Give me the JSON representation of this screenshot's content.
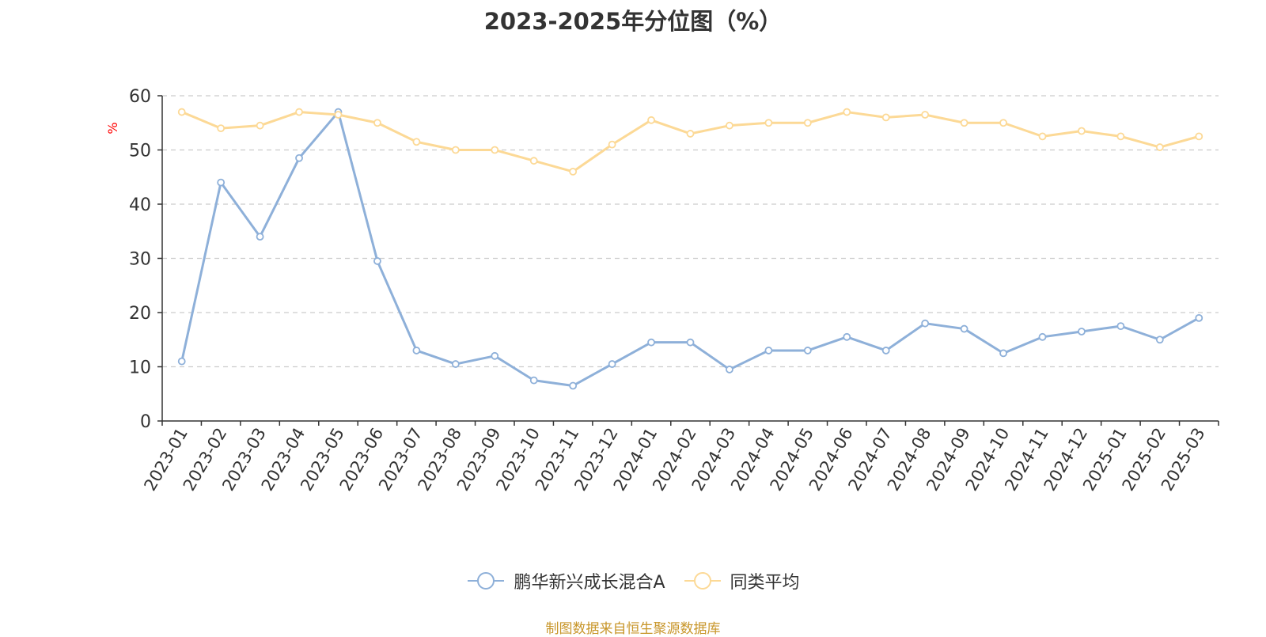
{
  "colors": {
    "series_a": "#8eb0d9",
    "series_b": "#fcd996",
    "grid": "#cccccc",
    "axis": "#333333",
    "unit": "#ff0000",
    "source": "#c8962a"
  },
  "source_note": "制图数据来自恒生聚源数据库",
  "chart_data": {
    "type": "line",
    "title": "2023-2025年分位图（%）",
    "ylabel": "%",
    "xlabel": "",
    "ylim": [
      0,
      60
    ],
    "yticks": [
      0,
      10,
      20,
      30,
      40,
      50,
      60
    ],
    "grid": true,
    "legend_position": "bottom",
    "categories": [
      "2023-01",
      "2023-02",
      "2023-03",
      "2023-04",
      "2023-05",
      "2023-06",
      "2023-07",
      "2023-08",
      "2023-09",
      "2023-10",
      "2023-11",
      "2023-12",
      "2024-01",
      "2024-02",
      "2024-03",
      "2024-04",
      "2024-05",
      "2024-06",
      "2024-07",
      "2024-08",
      "2024-09",
      "2024-10",
      "2024-11",
      "2024-12",
      "2025-01",
      "2025-02",
      "2025-03"
    ],
    "series": [
      {
        "name": "鹏华新兴成长混合A",
        "color": "#8eb0d9",
        "values": [
          11,
          44,
          34,
          48.5,
          57,
          29.5,
          13,
          10.5,
          12,
          7.5,
          6.5,
          10.5,
          14.5,
          14.5,
          9.5,
          13,
          13,
          15.5,
          13,
          18,
          17,
          12.5,
          15.5,
          16.5,
          17.5,
          15,
          19
        ]
      },
      {
        "name": "同类平均",
        "color": "#fcd996",
        "values": [
          57,
          54,
          54.5,
          57,
          56.5,
          55,
          51.5,
          50,
          50,
          48,
          46,
          51,
          55.5,
          53,
          54.5,
          55,
          55,
          57,
          56,
          56.5,
          55,
          55,
          52.5,
          53.5,
          52.5,
          50.5,
          52.5
        ]
      }
    ]
  }
}
